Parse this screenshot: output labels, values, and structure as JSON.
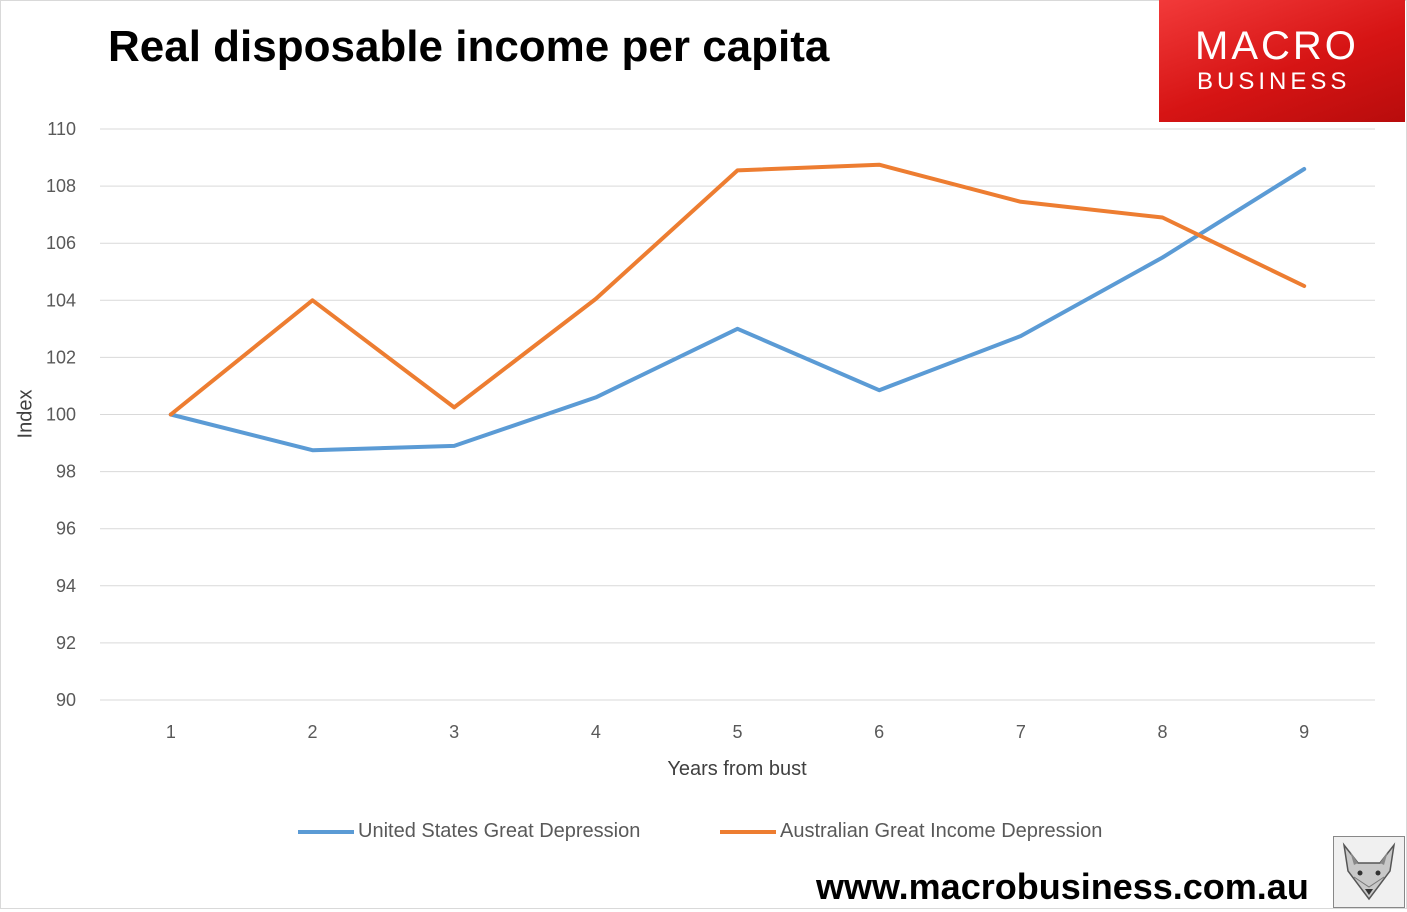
{
  "header": {
    "title": "Real disposable income per capita"
  },
  "logo": {
    "line1": "MACRO",
    "line2": "BUSINESS"
  },
  "footer": {
    "url": "www.macrobusiness.com.au"
  },
  "chart_data": {
    "type": "line",
    "title": "Real disposable income per capita",
    "xlabel": "Years from bust",
    "ylabel": "Index",
    "categories": [
      "1",
      "2",
      "3",
      "4",
      "5",
      "6",
      "7",
      "8",
      "9"
    ],
    "y_ticks": [
      "90",
      "92",
      "94",
      "96",
      "98",
      "100",
      "102",
      "104",
      "106",
      "108",
      "110"
    ],
    "ylim": [
      90,
      110
    ],
    "grid": true,
    "legend_position": "bottom",
    "series": [
      {
        "name": "United States Great Depression",
        "color": "#5b9bd5",
        "values": [
          100.0,
          98.75,
          98.9,
          100.6,
          103.0,
          100.85,
          102.75,
          105.5,
          108.6
        ]
      },
      {
        "name": "Australian Great Income Depression",
        "color": "#ed7d31",
        "values": [
          100.0,
          104.0,
          100.25,
          104.05,
          108.55,
          108.75,
          107.45,
          106.9,
          104.5
        ]
      }
    ]
  }
}
